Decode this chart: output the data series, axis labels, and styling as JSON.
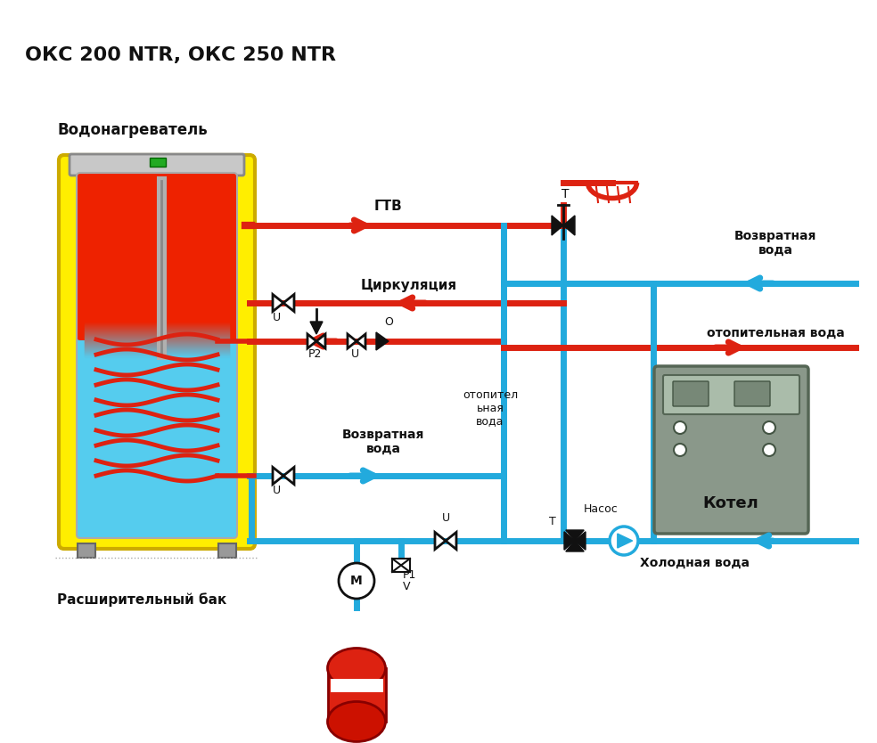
{
  "title": "ОКС 200 NTR, ОКС 250 NTR",
  "bg_color": "#ffffff",
  "label_vodona": "Водонагреватель",
  "label_rassh": "Расширительный бак",
  "label_gtv": "ГТВ",
  "label_cirk": "Циркуляция",
  "label_otop_left": "отопител\nьная\nвода",
  "label_vozvr_right": "Возвратная\nвода",
  "label_vozvr_mid": "Возвратная\nвода",
  "label_otop2": "отопительная вода",
  "label_kholod": "Холодная вода",
  "label_kotel": "Котел",
  "label_nasos": "Насос",
  "red_color": "#dd2211",
  "blue_color": "#22aadd",
  "yellow_color": "#ffee00",
  "gray_color": "#889988",
  "dark_color": "#111111",
  "line_width": 5.0
}
